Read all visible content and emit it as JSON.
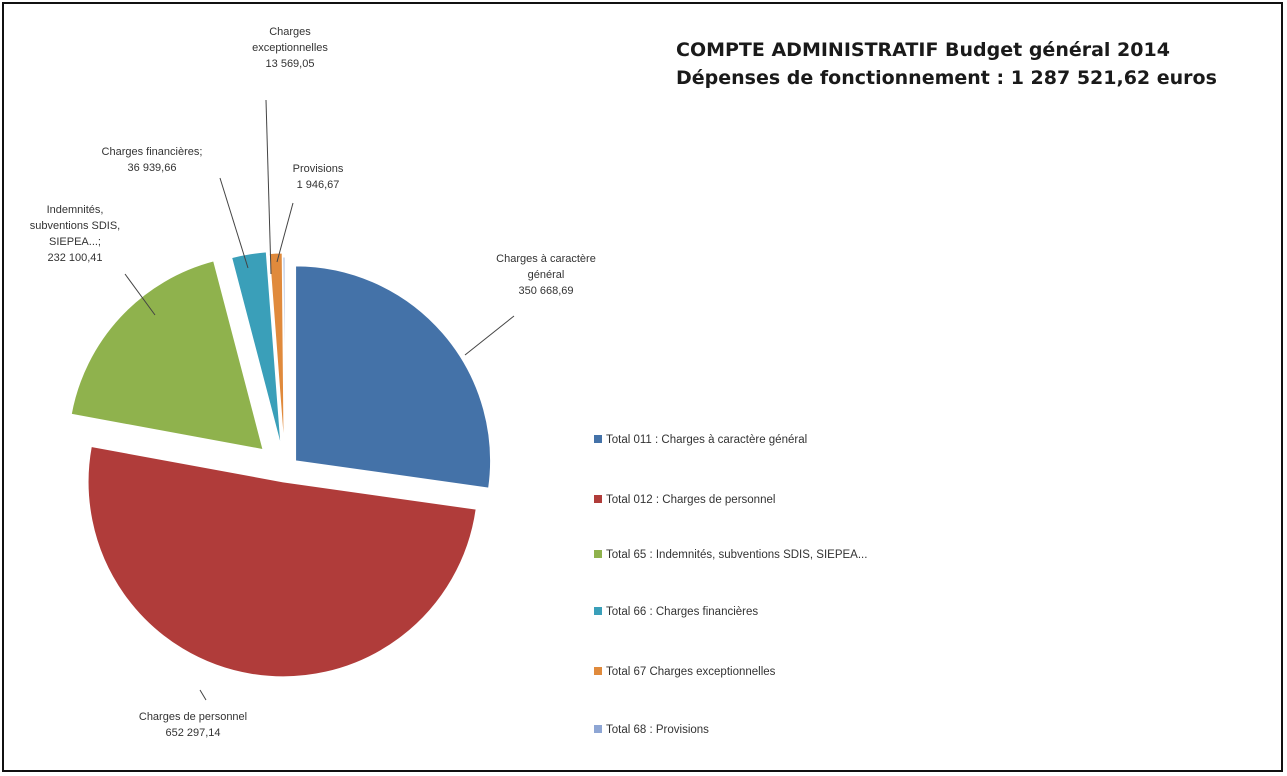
{
  "title_line1": "COMPTE ADMINISTRATIF Budget général 2014",
  "title_line2": "Dépenses de fonctionnement : 1 287 521,62 euros",
  "chart_data": {
    "type": "pie",
    "title": "COMPTE ADMINISTRATIF Budget général 2014 — Dépenses de fonctionnement : 1 287 521,62 euros",
    "slices": [
      {
        "legend": "Total 011 : Charges à caractère général",
        "label": [
          "Charges à caractère",
          "général",
          "350 668,69"
        ],
        "value": 350668.69,
        "color": "#4472a8"
      },
      {
        "legend": "Total 012 : Charges de personnel",
        "label": [
          "Charges de personnel",
          "652 297,14"
        ],
        "value": 652297.14,
        "color": "#b03c3a"
      },
      {
        "legend": "Total 65 : Indemnités, subventions SDIS, SIEPEA...",
        "label": [
          "Indemnités,",
          "subventions SDIS,",
          "SIEPEA...;",
          "232 100,41"
        ],
        "value": 232100.41,
        "color": "#8fb24d"
      },
      {
        "legend": "Total 66 : Charges financières",
        "label": [
          "Charges financières;",
          "36 939,66"
        ],
        "value": 36939.66,
        "color": "#3a9fb9"
      },
      {
        "legend": "Total 67 Charges exceptionnelles",
        "label": [
          "Charges",
          "exceptionnelles",
          "13 569,05"
        ],
        "value": 13569.05,
        "color": "#e08a3c"
      },
      {
        "legend": "Total 68 : Provisions",
        "label": [
          "Provisions",
          "1 946,67"
        ],
        "value": 1946.67,
        "color": "#8ea6d4"
      }
    ],
    "legend_position": "right"
  }
}
